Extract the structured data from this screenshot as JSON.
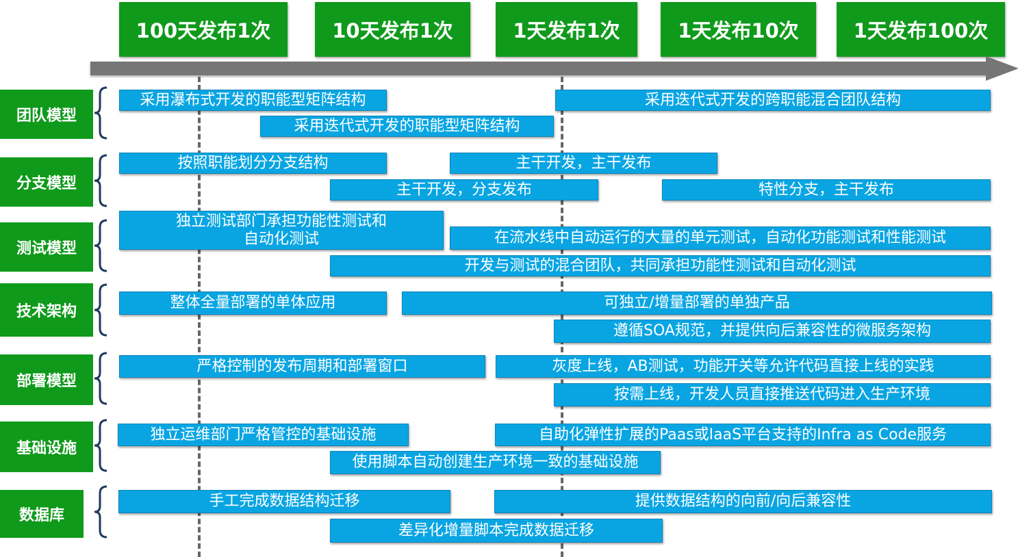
{
  "colors": {
    "green": "#0f9a1b",
    "blue": "#09a5e3",
    "arrow": "#767676"
  },
  "frequencies": [
    "100天发布1次",
    "10天发布1次",
    "1天发布1次",
    "1天发布10次",
    "1天发布100次"
  ],
  "categories": [
    {
      "label": "团队模型",
      "items": [
        "采用瀑布式开发的职能型矩阵结构",
        "采用迭代式开发的跨职能混合团队结构",
        "采用迭代式开发的职能型矩阵结构"
      ]
    },
    {
      "label": "分支模型",
      "items": [
        "按照职能划分分支结构",
        "主干开发，主干发布",
        "主干开发，分支发布",
        "特性分支，主干发布"
      ]
    },
    {
      "label": "测试模型",
      "items": [
        "独立测试部门承担功能性测试和\n自动化测试",
        "在流水线中自动运行的大量的单元测试，自动化功能测试和性能测试",
        "开发与测试的混合团队，共同承担功能性测试和自动化测试"
      ]
    },
    {
      "label": "技术架构",
      "items": [
        "整体全量部署的单体应用",
        "可独立/增量部署的单独产品",
        "遵循SOA规范，并提供向后兼容性的微服务架构"
      ]
    },
    {
      "label": "部署模型",
      "items": [
        "严格控制的发布周期和部署窗口",
        "灰度上线，AB测试，功能开关等允许代码直接上线的实践",
        "按需上线，开发人员直接推送代码进入生产环境"
      ]
    },
    {
      "label": "基础设施",
      "items": [
        "独立运维部门严格管控的基础设施",
        "自助化弹性扩展的Paas或IaaS平台支持的Infra as Code服务",
        "使用脚本自动创建生产环境一致的基础设施"
      ]
    },
    {
      "label": "数据库",
      "items": [
        "手工完成数据结构迁移",
        "提供数据结构的向前/向后兼容性",
        "差异化增量脚本完成数据迁移"
      ]
    }
  ]
}
